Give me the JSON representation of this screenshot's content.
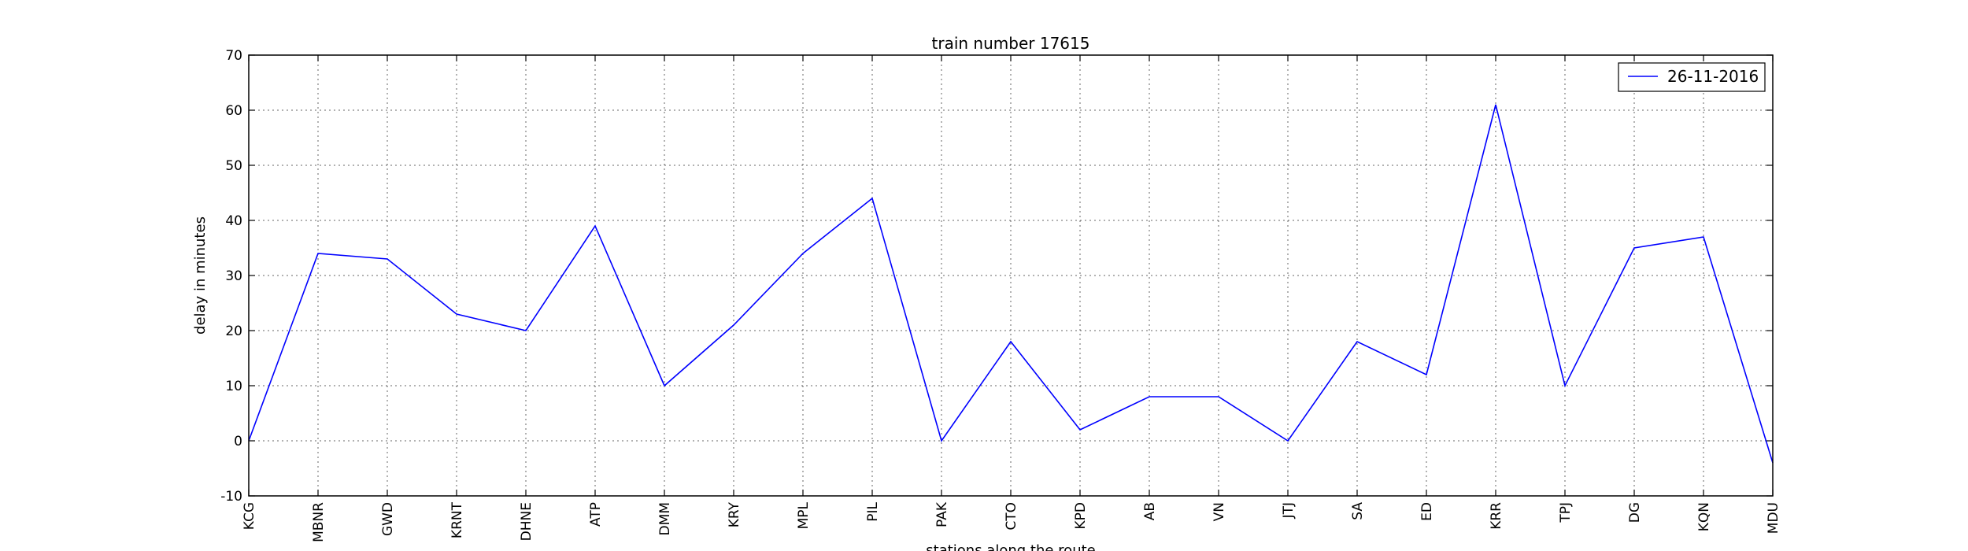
{
  "chart_data": {
    "type": "line",
    "title": "train number 17615",
    "xlabel": "stations along the route",
    "ylabel": "delay in minutes",
    "categories": [
      "KCG",
      "MBNR",
      "GWD",
      "KRNT",
      "DHNE",
      "ATP",
      "DMM",
      "KRY",
      "MPL",
      "PIL",
      "PAK",
      "CTO",
      "KPD",
      "AB",
      "VN",
      "JTJ",
      "SA",
      "ED",
      "KRR",
      "TPJ",
      "DG",
      "KQN",
      "MDU"
    ],
    "series": [
      {
        "name": "26-11-2016",
        "color": "#0000ff",
        "values": [
          0,
          34,
          33,
          23,
          20,
          39,
          10,
          21,
          34,
          44,
          0,
          18,
          2,
          8,
          8,
          0,
          18,
          12,
          61,
          10,
          35,
          37,
          -4
        ]
      }
    ],
    "ylim": [
      -10,
      70
    ],
    "yticks": [
      -10,
      0,
      10,
      20,
      30,
      40,
      50,
      60,
      70
    ],
    "grid": true,
    "legend_position": "top-right"
  }
}
